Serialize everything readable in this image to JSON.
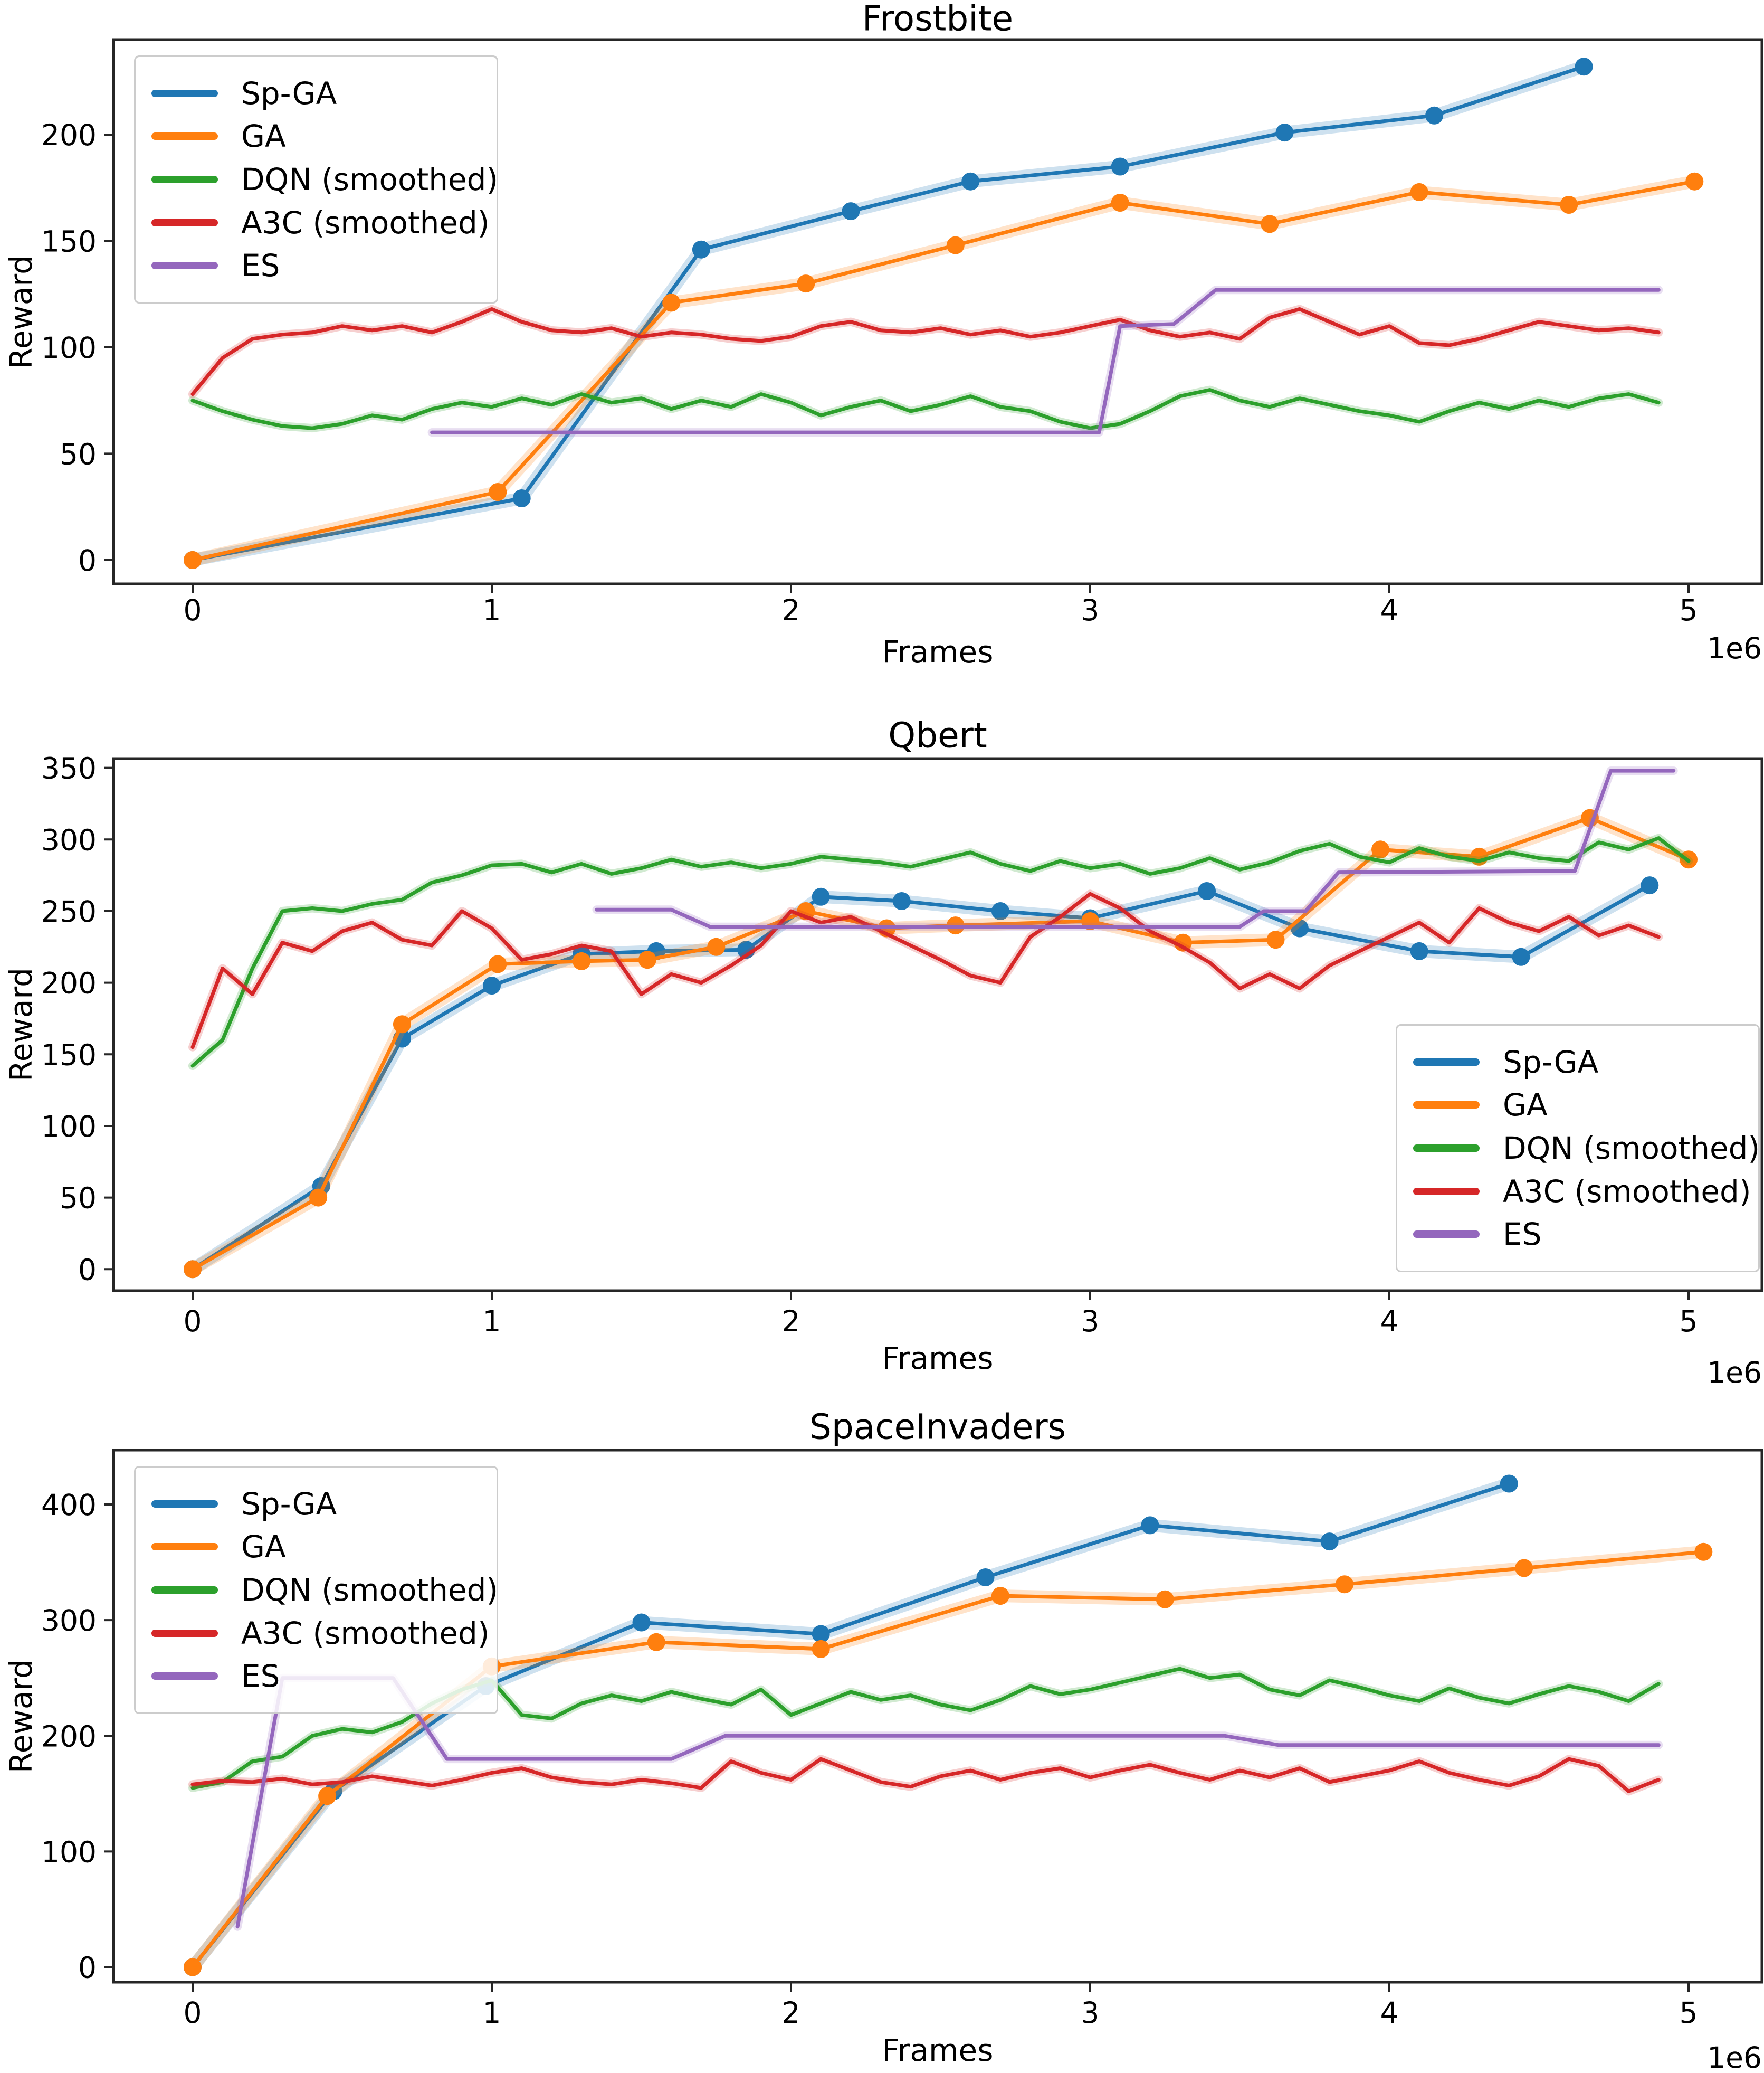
{
  "figure": {
    "background": "#ffffff",
    "text_color": "#000000",
    "spine_color": "#262626"
  },
  "series_colors": {
    "sp_ga": "#1f77b4",
    "ga": "#ff7f0e",
    "dqn": "#2ca02c",
    "a3c": "#d62728",
    "es": "#9467bd"
  },
  "chart_data": [
    {
      "type": "line",
      "title": "Frostbite",
      "xlabel": "Frames",
      "ylabel": "Reward",
      "x_offset_label": "1e6",
      "xlim": [
        -0.265,
        5.245
      ],
      "ylim": [
        -11.2,
        244.7
      ],
      "xticks": [
        0,
        1,
        2,
        3,
        4,
        5
      ],
      "yticks": [
        0,
        50,
        100,
        150,
        200
      ],
      "grid": false,
      "legend": {
        "position": "upper-left",
        "entries": [
          "Sp-GA",
          "GA",
          "DQN (smoothed)",
          "A3C (smoothed)",
          "ES"
        ]
      },
      "series": [
        {
          "name": "Sp-GA",
          "color": "#1f77b4",
          "markers": true,
          "points": [
            [
              0,
              0
            ],
            [
              1.1,
              29
            ],
            [
              1.7,
              146
            ],
            [
              2.2,
              164
            ],
            [
              2.6,
              178
            ],
            [
              3.1,
              185
            ],
            [
              3.65,
              201
            ],
            [
              4.15,
              209
            ],
            [
              4.65,
              232
            ]
          ]
        },
        {
          "name": "GA",
          "color": "#ff7f0e",
          "markers": true,
          "points": [
            [
              0,
              0
            ],
            [
              1.02,
              32
            ],
            [
              1.6,
              121
            ],
            [
              2.05,
              130
            ],
            [
              2.55,
              148
            ],
            [
              3.1,
              168
            ],
            [
              3.6,
              158
            ],
            [
              4.1,
              173
            ],
            [
              4.6,
              167
            ],
            [
              5.02,
              178
            ]
          ]
        },
        {
          "name": "DQN (smoothed)",
          "color": "#2ca02c",
          "markers": false,
          "x0": 0,
          "dx": 0.1,
          "y": [
            75,
            70,
            66,
            63,
            62,
            64,
            68,
            66,
            71,
            74,
            72,
            76,
            73,
            78,
            74,
            76,
            71,
            75,
            72,
            78,
            74,
            68,
            72,
            75,
            70,
            73,
            77,
            72,
            70,
            65,
            62,
            64,
            70,
            77,
            80,
            75,
            72,
            76,
            73,
            70,
            68,
            65,
            70,
            74,
            71,
            75,
            72,
            76,
            78,
            74
          ]
        },
        {
          "name": "A3C (smoothed)",
          "color": "#d62728",
          "markers": false,
          "x0": 0,
          "dx": 0.1,
          "y": [
            78,
            95,
            104,
            106,
            107,
            110,
            108,
            110,
            107,
            112,
            118,
            112,
            108,
            107,
            109,
            105,
            107,
            106,
            104,
            103,
            105,
            110,
            112,
            108,
            107,
            109,
            106,
            108,
            105,
            107,
            110,
            113,
            108,
            105,
            107,
            104,
            114,
            118,
            112,
            106,
            110,
            102,
            101,
            104,
            108,
            112,
            110,
            108,
            109,
            107
          ]
        },
        {
          "name": "ES",
          "color": "#9467bd",
          "markers": false,
          "points": [
            [
              0.8,
              60
            ],
            [
              3.03,
              60
            ],
            [
              3.1,
              110
            ],
            [
              3.28,
              111
            ],
            [
              3.42,
              127
            ],
            [
              4.9,
              127
            ]
          ]
        }
      ]
    },
    {
      "type": "line",
      "title": "Qbert",
      "xlabel": "Frames",
      "ylabel": "Reward",
      "x_offset_label": "1e6",
      "xlim": [
        -0.265,
        5.245
      ],
      "ylim": [
        -15,
        356.5
      ],
      "xticks": [
        0,
        1,
        2,
        3,
        4,
        5
      ],
      "yticks": [
        0,
        50,
        100,
        150,
        200,
        250,
        300,
        350
      ],
      "grid": false,
      "legend": {
        "position": "lower-right",
        "entries": [
          "Sp-GA",
          "GA",
          "DQN (smoothed)",
          "A3C (smoothed)",
          "ES"
        ]
      },
      "series": [
        {
          "name": "Sp-GA",
          "color": "#1f77b4",
          "markers": true,
          "points": [
            [
              0,
              0
            ],
            [
              0.43,
              58
            ],
            [
              0.7,
              161
            ],
            [
              1.0,
              198
            ],
            [
              1.3,
              220
            ],
            [
              1.55,
              222
            ],
            [
              1.85,
              223
            ],
            [
              2.1,
              260
            ],
            [
              2.37,
              257
            ],
            [
              2.7,
              250
            ],
            [
              3.0,
              245
            ],
            [
              3.39,
              264
            ],
            [
              3.7,
              238
            ],
            [
              4.1,
              222
            ],
            [
              4.44,
              218
            ],
            [
              4.87,
              268
            ]
          ]
        },
        {
          "name": "GA",
          "color": "#ff7f0e",
          "markers": true,
          "points": [
            [
              0,
              0
            ],
            [
              0.42,
              50
            ],
            [
              0.7,
              171
            ],
            [
              1.02,
              213
            ],
            [
              1.3,
              215
            ],
            [
              1.52,
              216
            ],
            [
              1.75,
              225
            ],
            [
              2.05,
              250
            ],
            [
              2.32,
              238
            ],
            [
              2.55,
              240
            ],
            [
              3.0,
              243
            ],
            [
              3.31,
              228
            ],
            [
              3.62,
              230
            ],
            [
              3.97,
              293
            ],
            [
              4.3,
              288
            ],
            [
              4.67,
              315
            ],
            [
              5.0,
              286
            ]
          ]
        },
        {
          "name": "DQN (smoothed)",
          "color": "#2ca02c",
          "markers": false,
          "x0": 0,
          "dx": 0.1,
          "y": [
            142,
            160,
            210,
            250,
            252,
            250,
            255,
            258,
            270,
            275,
            282,
            283,
            277,
            283,
            276,
            280,
            286,
            281,
            284,
            280,
            283,
            288,
            286,
            284,
            281,
            286,
            291,
            283,
            278,
            285,
            280,
            283,
            276,
            280,
            287,
            279,
            284,
            292,
            297,
            288,
            284,
            294,
            288,
            285,
            291,
            287,
            285,
            298,
            293,
            301,
            285
          ]
        },
        {
          "name": "A3C (smoothed)",
          "color": "#d62728",
          "markers": false,
          "x0": 0,
          "dx": 0.1,
          "y": [
            155,
            210,
            192,
            228,
            222,
            236,
            242,
            230,
            226,
            250,
            238,
            216,
            220,
            226,
            222,
            192,
            206,
            200,
            212,
            226,
            250,
            242,
            246,
            236,
            226,
            216,
            205,
            200,
            232,
            246,
            262,
            252,
            236,
            226,
            214,
            196,
            206,
            196,
            212,
            222,
            232,
            242,
            228,
            252,
            242,
            236,
            246,
            233,
            240,
            232
          ]
        },
        {
          "name": "ES",
          "color": "#9467bd",
          "markers": false,
          "points": [
            [
              1.35,
              251
            ],
            [
              1.6,
              251
            ],
            [
              1.73,
              239
            ],
            [
              3.5,
              239
            ],
            [
              3.58,
              250
            ],
            [
              3.72,
              250
            ],
            [
              3.83,
              277
            ],
            [
              4.62,
              278
            ],
            [
              4.74,
              348
            ],
            [
              4.95,
              348
            ]
          ]
        }
      ]
    },
    {
      "type": "line",
      "title": "SpaceInvaders",
      "xlabel": "Frames",
      "ylabel": "Reward",
      "x_offset_label": "1e6",
      "xlim": [
        -0.265,
        5.245
      ],
      "ylim": [
        -13,
        447
      ],
      "xticks": [
        0,
        1,
        2,
        3,
        4,
        5
      ],
      "yticks": [
        0,
        100,
        200,
        300,
        400
      ],
      "grid": false,
      "legend": {
        "position": "upper-left",
        "entries": [
          "Sp-GA",
          "GA",
          "DQN (smoothed)",
          "A3C (smoothed)",
          "ES"
        ]
      },
      "series": [
        {
          "name": "Sp-GA",
          "color": "#1f77b4",
          "markers": true,
          "points": [
            [
              0,
              0
            ],
            [
              0.47,
              152
            ],
            [
              0.98,
              243
            ],
            [
              1.5,
              298
            ],
            [
              2.1,
              288
            ],
            [
              2.65,
              337
            ],
            [
              3.2,
              382
            ],
            [
              3.8,
              368
            ],
            [
              4.4,
              418
            ]
          ]
        },
        {
          "name": "GA",
          "color": "#ff7f0e",
          "markers": true,
          "points": [
            [
              0,
              0
            ],
            [
              0.45,
              148
            ],
            [
              1.0,
              260
            ],
            [
              1.55,
              281
            ],
            [
              2.1,
              275
            ],
            [
              2.7,
              321
            ],
            [
              3.25,
              318
            ],
            [
              3.85,
              331
            ],
            [
              4.45,
              345
            ],
            [
              5.05,
              359
            ]
          ]
        },
        {
          "name": "DQN (smoothed)",
          "color": "#2ca02c",
          "markers": false,
          "x0": 0,
          "dx": 0.1,
          "y": [
            155,
            160,
            178,
            182,
            200,
            206,
            203,
            212,
            228,
            240,
            248,
            218,
            215,
            228,
            235,
            230,
            238,
            232,
            227,
            240,
            218,
            228,
            238,
            231,
            235,
            227,
            222,
            231,
            243,
            236,
            240,
            246,
            252,
            258,
            250,
            253,
            240,
            235,
            248,
            242,
            235,
            230,
            241,
            233,
            228,
            236,
            243,
            238,
            230,
            245
          ]
        },
        {
          "name": "A3C (smoothed)",
          "color": "#d62728",
          "markers": false,
          "x0": 0,
          "dx": 0.1,
          "y": [
            158,
            161,
            160,
            163,
            158,
            160,
            165,
            161,
            157,
            162,
            168,
            172,
            164,
            160,
            158,
            162,
            159,
            155,
            178,
            168,
            162,
            180,
            170,
            160,
            156,
            165,
            170,
            162,
            168,
            172,
            164,
            170,
            175,
            168,
            162,
            170,
            164,
            172,
            160,
            165,
            170,
            178,
            168,
            162,
            157,
            165,
            180,
            174,
            152,
            162
          ]
        },
        {
          "name": "ES",
          "color": "#9467bd",
          "markers": false,
          "points": [
            [
              0.15,
              35
            ],
            [
              0.3,
              250
            ],
            [
              0.67,
              250
            ],
            [
              0.85,
              180
            ],
            [
              1.6,
              180
            ],
            [
              1.78,
              200
            ],
            [
              3.45,
              200
            ],
            [
              3.63,
              192
            ],
            [
              4.9,
              192
            ]
          ]
        }
      ]
    }
  ]
}
